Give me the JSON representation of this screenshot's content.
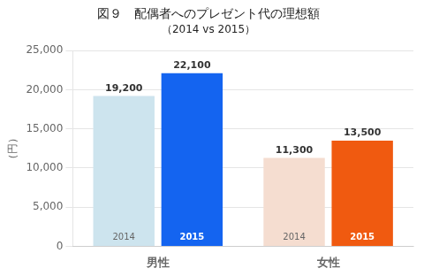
{
  "chart_data": {
    "type": "bar",
    "title": "図９　配偶者へのプレゼント代の理想額",
    "subtitle": "（2014 vs 2015）",
    "ylabel": "（円）",
    "categories": [
      "男性",
      "女性"
    ],
    "series": [
      {
        "name": "2014",
        "colors": [
          "#cde4ee",
          "#f5ddd0"
        ],
        "values": [
          19200,
          11300
        ],
        "value_labels": [
          "19,200",
          "11,300"
        ]
      },
      {
        "name": "2015",
        "colors": [
          "#1464f0",
          "#f05a10"
        ],
        "values": [
          22100,
          13500
        ],
        "value_labels": [
          "22,100",
          "13,500"
        ]
      }
    ],
    "ylim": [
      0,
      25000
    ],
    "yticks": [
      0,
      {
        "value": 5000,
        "label": "5,000"
      },
      {
        "value": 10000,
        "label": "10,000"
      },
      {
        "value": 15000,
        "label": "15,000"
      },
      {
        "value": 20000,
        "label": "20,000"
      },
      {
        "value": 25000,
        "label": "25,000"
      }
    ],
    "grid": true,
    "data_labels": true
  }
}
